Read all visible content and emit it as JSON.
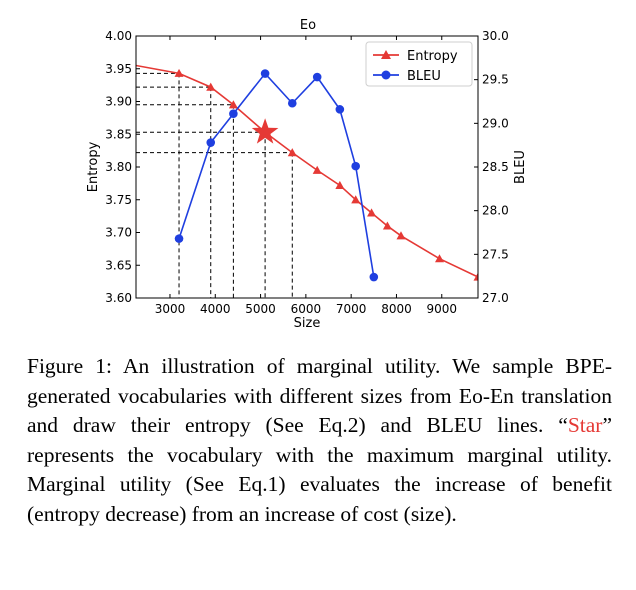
{
  "chart_data": {
    "type": "line",
    "title": "Eo",
    "xlabel": "Size",
    "ylabel_left": "Entropy",
    "ylabel_right": "BLEU",
    "xlim": [
      2250,
      9800
    ],
    "ylim_left": [
      3.6,
      4.0
    ],
    "ylim_right": [
      27.0,
      30.0
    ],
    "x_ticks": [
      3000,
      4000,
      5000,
      6000,
      7000,
      8000,
      9000
    ],
    "y_left_ticks": [
      3.6,
      3.65,
      3.7,
      3.75,
      3.8,
      3.85,
      3.9,
      3.95,
      4.0
    ],
    "y_right_ticks": [
      27.0,
      27.5,
      28.0,
      28.5,
      29.0,
      29.5,
      30.0
    ],
    "legend_position": "top-right",
    "series": [
      {
        "name": "Entropy",
        "axis": "left",
        "color": "#e53935",
        "marker": "triangle",
        "x": [
          2250,
          3200,
          3900,
          4400,
          5100,
          5700,
          6250,
          6750,
          7100,
          7450,
          7800,
          8100,
          8950,
          9800
        ],
        "y": [
          3.955,
          3.943,
          3.922,
          3.895,
          3.853,
          3.822,
          3.795,
          3.772,
          3.75,
          3.73,
          3.71,
          3.695,
          3.66,
          3.632
        ],
        "marker_points": [
          3200,
          3900,
          4400,
          5700,
          6250,
          6750,
          7100,
          7450,
          7800,
          8100,
          8950,
          9800
        ]
      },
      {
        "name": "BLEU",
        "axis": "right",
        "color": "#1f3fe0",
        "marker": "circle",
        "x": [
          3200,
          3900,
          4400,
          5100,
          5700,
          6250,
          6750,
          7100,
          7500
        ],
        "y": [
          27.68,
          28.78,
          29.11,
          29.57,
          29.23,
          29.53,
          29.16,
          28.51,
          27.24
        ]
      }
    ],
    "star": {
      "x": 5100,
      "y": 3.853,
      "color": "#e53935"
    },
    "guides": [
      {
        "x": 3200,
        "y": 3.943
      },
      {
        "x": 3900,
        "y": 3.922
      },
      {
        "x": 4400,
        "y": 3.895
      },
      {
        "x": 5100,
        "y": 3.853
      },
      {
        "x": 5700,
        "y": 3.822
      }
    ]
  },
  "caption": {
    "before_star": "Figure 1: An illustration of marginal utility. We sample BPE-generated vocabularies with different sizes from Eo-En translation and draw their entropy (See Eq.2) and BLEU lines. “",
    "star_word": "Star",
    "after_star": "” represents the vocabulary with the maximum marginal utility.  Marginal utility (See Eq.1) evaluates the increase of benefit (entropy decrease) from an increase of cost (size)."
  }
}
